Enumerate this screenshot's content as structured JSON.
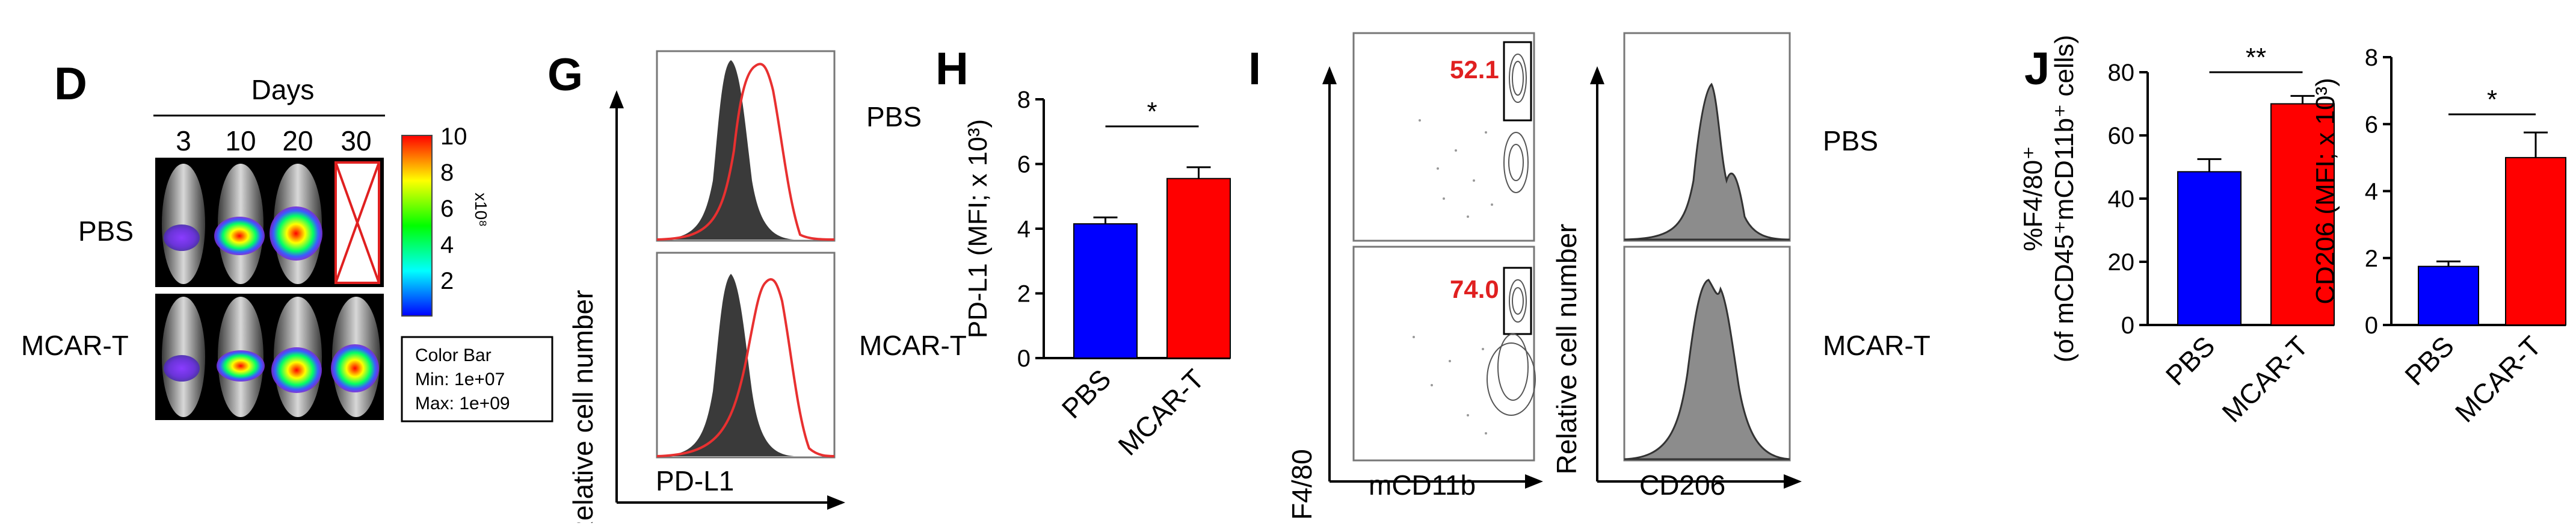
{
  "panels": {
    "D": {
      "letter": "D",
      "header": "Days",
      "days": [
        "3",
        "10",
        "20",
        "30"
      ],
      "rows": [
        "PBS",
        "MCAR-T"
      ],
      "colorbar_ticks": [
        "10",
        "8",
        "6",
        "4",
        "2"
      ],
      "colorbar_unit": "x10⁸",
      "legend_lines": [
        "Color Bar",
        "Min: 1e+07",
        "Max: 1e+09"
      ],
      "colors": {
        "high": "#ff0000",
        "mid": "#ffff00",
        "low": "#0000ff"
      }
    },
    "G": {
      "letter": "G",
      "xlabel": "PD-L1",
      "ylabel": "Relative cell number",
      "rows": [
        "PBS",
        "MCAR-T"
      ]
    },
    "H": {
      "letter": "H",
      "significance": "*"
    },
    "I": {
      "letter": "I",
      "dot_xlabel": "mCD11b",
      "dot_ylabel": "F4/80",
      "hist_xlabel": "CD206",
      "hist_ylabel": "Relative cell number",
      "gate_values": [
        "52.1",
        "74.0"
      ],
      "rows": [
        "PBS",
        "MCAR-T"
      ]
    },
    "J": {
      "letter": "J",
      "sig_left": "**",
      "sig_right": "*"
    }
  },
  "chart_data": [
    {
      "type": "bar",
      "panel": "H",
      "categories": [
        "PBS",
        "MCAR-T"
      ],
      "values": [
        4.15,
        5.55
      ],
      "errors": [
        0.2,
        0.35
      ],
      "ylabel": "PD-L1 (MFI; x 10³)",
      "ylim": [
        0,
        8
      ],
      "yticks": [
        "0",
        "2",
        "4",
        "6",
        "8"
      ],
      "colors": [
        "#0000ff",
        "#ff0000"
      ]
    },
    {
      "type": "bar",
      "panel": "J-left",
      "categories": [
        "PBS",
        "MCAR-T"
      ],
      "values": [
        48.5,
        70
      ],
      "errors": [
        4,
        2.5
      ],
      "ylabel": "%F4/80⁺ (of mCD45⁺mCD11b⁺ cells)",
      "ylim": [
        0,
        80
      ],
      "yticks": [
        "0",
        "20",
        "40",
        "60",
        "80"
      ],
      "colors": [
        "#0000ff",
        "#ff0000"
      ]
    },
    {
      "type": "bar",
      "panel": "J-right",
      "categories": [
        "PBS",
        "MCAR-T"
      ],
      "values": [
        1.75,
        5.0
      ],
      "errors": [
        0.15,
        0.75
      ],
      "ylabel": "CD206 (MFI; x 10³)",
      "ylim": [
        0,
        8
      ],
      "yticks": [
        "0",
        "2",
        "4",
        "6",
        "8"
      ],
      "colors": [
        "#0000ff",
        "#ff0000"
      ]
    }
  ]
}
